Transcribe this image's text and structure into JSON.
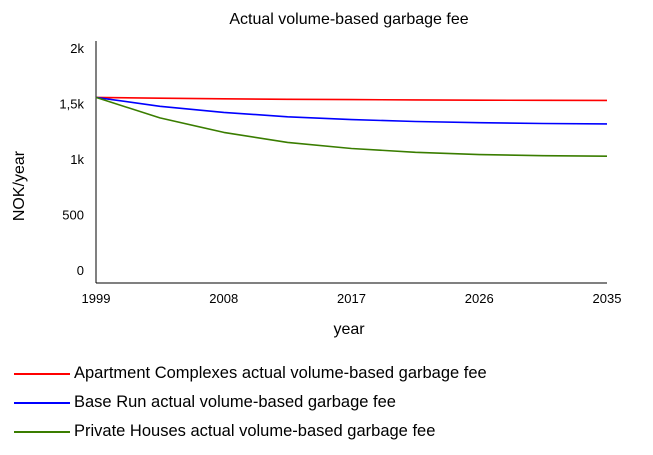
{
  "chart_data": {
    "type": "line",
    "title": "Actual volume-based garbage fee",
    "xlabel": "year",
    "ylabel": "NOK/year",
    "x_ticks": [
      "1999",
      "2008",
      "2017",
      "2026",
      "2035"
    ],
    "y_ticks": [
      "0",
      "500",
      "1k",
      "1,5k",
      "2k"
    ],
    "y_tick_values": [
      0,
      500,
      1000,
      1500,
      2000
    ],
    "xlim": [
      1999,
      2035
    ],
    "ylim": [
      0,
      2000
    ],
    "grid": false,
    "legend_position": "bottom",
    "series": [
      {
        "name": "Apartment Complexes actual volume-based garbage fee",
        "color": "#ff0000",
        "x": [
          1999,
          2003.5,
          2008,
          2012.5,
          2017,
          2021.5,
          2026,
          2030.5,
          2035
        ],
        "y": [
          1555,
          1548,
          1542,
          1538,
          1535,
          1532,
          1530,
          1529,
          1528
        ]
      },
      {
        "name": "Base Run actual volume-based garbage fee",
        "color": "#0000ff",
        "x": [
          1999,
          2003.5,
          2008,
          2012.5,
          2017,
          2021.5,
          2026,
          2030.5,
          2035
        ],
        "y": [
          1555,
          1475,
          1420,
          1380,
          1355,
          1338,
          1327,
          1320,
          1316
        ]
      },
      {
        "name": "Private Houses actual volume-based garbage fee",
        "color": "#3a7d00",
        "x": [
          1999,
          2003.5,
          2008,
          2012.5,
          2017,
          2021.5,
          2026,
          2030.5,
          2035
        ],
        "y": [
          1555,
          1370,
          1240,
          1150,
          1095,
          1060,
          1040,
          1030,
          1025
        ]
      }
    ]
  }
}
